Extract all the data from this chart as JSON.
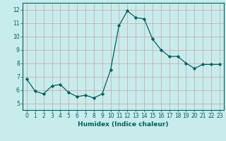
{
  "x": [
    0,
    1,
    2,
    3,
    4,
    5,
    6,
    7,
    8,
    9,
    10,
    11,
    12,
    13,
    14,
    15,
    16,
    17,
    18,
    19,
    20,
    21,
    22,
    23
  ],
  "y": [
    6.8,
    5.9,
    5.7,
    6.3,
    6.4,
    5.8,
    5.5,
    5.6,
    5.4,
    5.7,
    7.5,
    10.8,
    11.9,
    11.4,
    11.3,
    9.8,
    9.0,
    8.5,
    8.5,
    8.0,
    7.6,
    7.9,
    7.9,
    7.9
  ],
  "xlim": [
    -0.5,
    23.5
  ],
  "ylim": [
    4.5,
    12.5
  ],
  "yticks": [
    5,
    6,
    7,
    8,
    9,
    10,
    11,
    12
  ],
  "xticks": [
    0,
    1,
    2,
    3,
    4,
    5,
    6,
    7,
    8,
    9,
    10,
    11,
    12,
    13,
    14,
    15,
    16,
    17,
    18,
    19,
    20,
    21,
    22,
    23
  ],
  "xlabel": "Humidex (Indice chaleur)",
  "line_color": "#006060",
  "marker": "D",
  "marker_size": 2.2,
  "bg_color": "#c8ecec",
  "grid_color": "#c8a0a0",
  "axis_color": "#006060",
  "tick_label_color": "#006060",
  "xlabel_color": "#006060",
  "tick_fontsize": 5.5,
  "xlabel_fontsize": 6.5
}
